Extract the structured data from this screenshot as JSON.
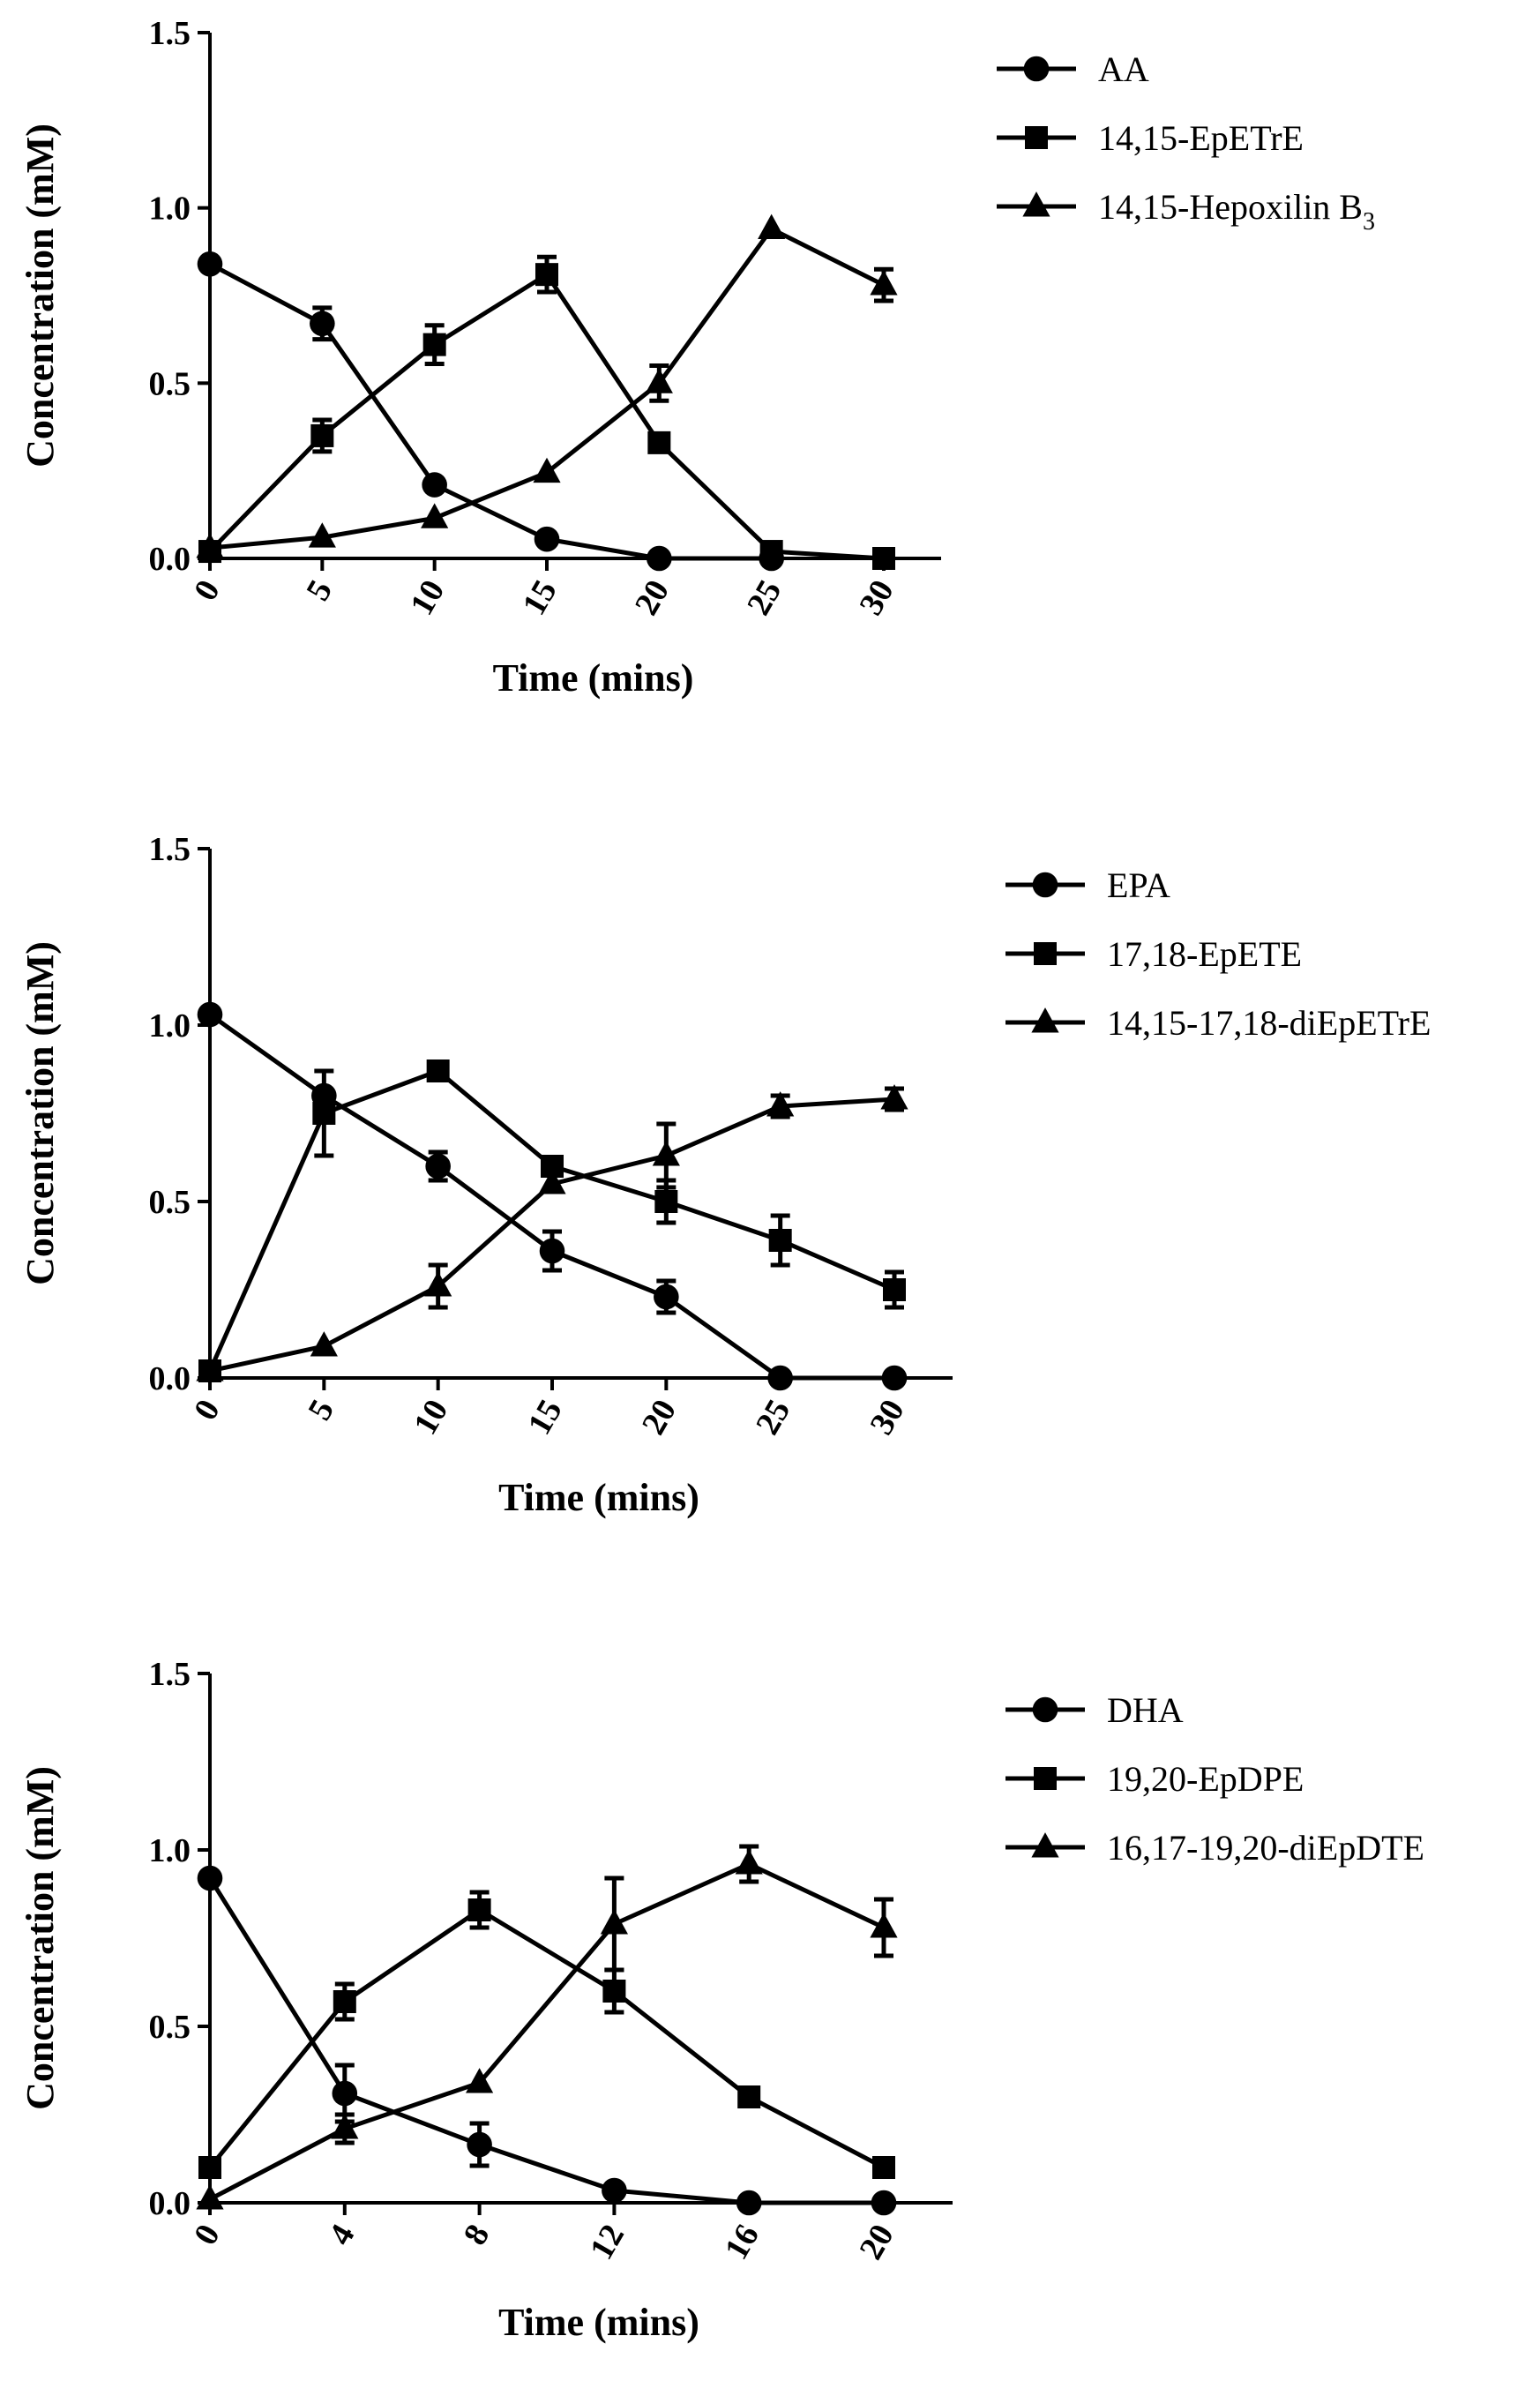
{
  "chart_data": [
    {
      "type": "line",
      "xlabel": "Time (mins)",
      "ylabel": "Concentration (mM)",
      "x": [
        0,
        5,
        10,
        15,
        20,
        25,
        30
      ],
      "xtick_labels": [
        "0",
        "5",
        "10",
        "15",
        "20",
        "25",
        "30"
      ],
      "ylim": [
        0,
        1.5
      ],
      "yticks": [
        "0.0",
        "0.5",
        "1.0",
        "1.5"
      ],
      "legend_position": "top-right",
      "series": [
        {
          "name": "AA",
          "marker": "circle",
          "values": [
            0.84,
            0.67,
            0.21,
            0.055,
            0.0,
            0.0,
            null
          ],
          "errors": [
            0.0,
            0.045,
            0.0,
            0.0,
            0.0,
            0.0,
            null
          ]
        },
        {
          "name": "14,15-EpETrE",
          "marker": "square",
          "values": [
            0.02,
            0.35,
            0.61,
            0.81,
            0.33,
            0.02,
            0.0
          ],
          "errors": [
            0.0,
            0.045,
            0.055,
            0.05,
            0.0,
            0.0,
            0.0
          ]
        },
        {
          "name": "14,15-Hepoxilin B",
          "subscript": "3",
          "marker": "triangle",
          "values": [
            0.03,
            0.06,
            0.115,
            0.245,
            0.5,
            0.94,
            0.78
          ],
          "errors": [
            0.0,
            0.0,
            0.0,
            0.0,
            0.05,
            0.0,
            0.045
          ]
        }
      ]
    },
    {
      "type": "line",
      "xlabel": "Time (mins)",
      "ylabel": "Concentration (mM)",
      "x": [
        0,
        5,
        10,
        15,
        20,
        25,
        30
      ],
      "xtick_labels": [
        "0",
        "5",
        "10",
        "15",
        "20",
        "25",
        "30"
      ],
      "ylim": [
        0,
        1.5
      ],
      "yticks": [
        "0.0",
        "0.5",
        "1.0",
        "1.5"
      ],
      "legend_position": "top-right",
      "series": [
        {
          "name": "EPA",
          "marker": "circle",
          "values": [
            1.03,
            0.8,
            0.6,
            0.36,
            0.23,
            0.0,
            0.0
          ],
          "errors": [
            0.0,
            0.0,
            0.04,
            0.055,
            0.045,
            0.0,
            0.0
          ]
        },
        {
          "name": "17,18-EpETE",
          "marker": "square",
          "values": [
            0.02,
            0.75,
            0.87,
            0.6,
            0.5,
            0.39,
            0.25
          ],
          "errors": [
            0.0,
            0.12,
            0.0,
            0.0,
            0.06,
            0.07,
            0.05
          ]
        },
        {
          "name": "14,15-17,18-diEpETrE",
          "marker": "triangle",
          "values": [
            0.02,
            0.09,
            0.26,
            0.55,
            0.63,
            0.77,
            0.79
          ],
          "errors": [
            0.0,
            0.0,
            0.06,
            0.0,
            0.09,
            0.03,
            0.03
          ]
        }
      ]
    },
    {
      "type": "line",
      "xlabel": "Time (mins)",
      "ylabel": "Concentration (mM)",
      "x": [
        0,
        4,
        8,
        12,
        16,
        20
      ],
      "xtick_labels": [
        "0",
        "4",
        "8",
        "12",
        "16",
        "20"
      ],
      "ylim": [
        0,
        1.5
      ],
      "yticks": [
        "0.0",
        "0.5",
        "1.0",
        "1.5"
      ],
      "legend_position": "top-right",
      "series": [
        {
          "name": "DHA",
          "marker": "circle",
          "values": [
            0.92,
            0.31,
            0.165,
            0.035,
            0.0,
            0.0
          ],
          "errors": [
            0.0,
            0.08,
            0.06,
            0.0,
            0.0,
            0.0
          ]
        },
        {
          "name": "19,20-EpDPE",
          "marker": "square",
          "values": [
            0.1,
            0.57,
            0.83,
            0.6,
            0.3,
            0.1
          ],
          "errors": [
            0.0,
            0.05,
            0.05,
            0.06,
            0.0,
            0.0
          ]
        },
        {
          "name": "16,17-19,20-diEpDTE",
          "marker": "triangle",
          "values": [
            0.01,
            0.21,
            0.34,
            0.79,
            0.96,
            0.78
          ],
          "errors": [
            0.0,
            0.04,
            0.0,
            0.13,
            0.05,
            0.08
          ]
        }
      ]
    }
  ]
}
